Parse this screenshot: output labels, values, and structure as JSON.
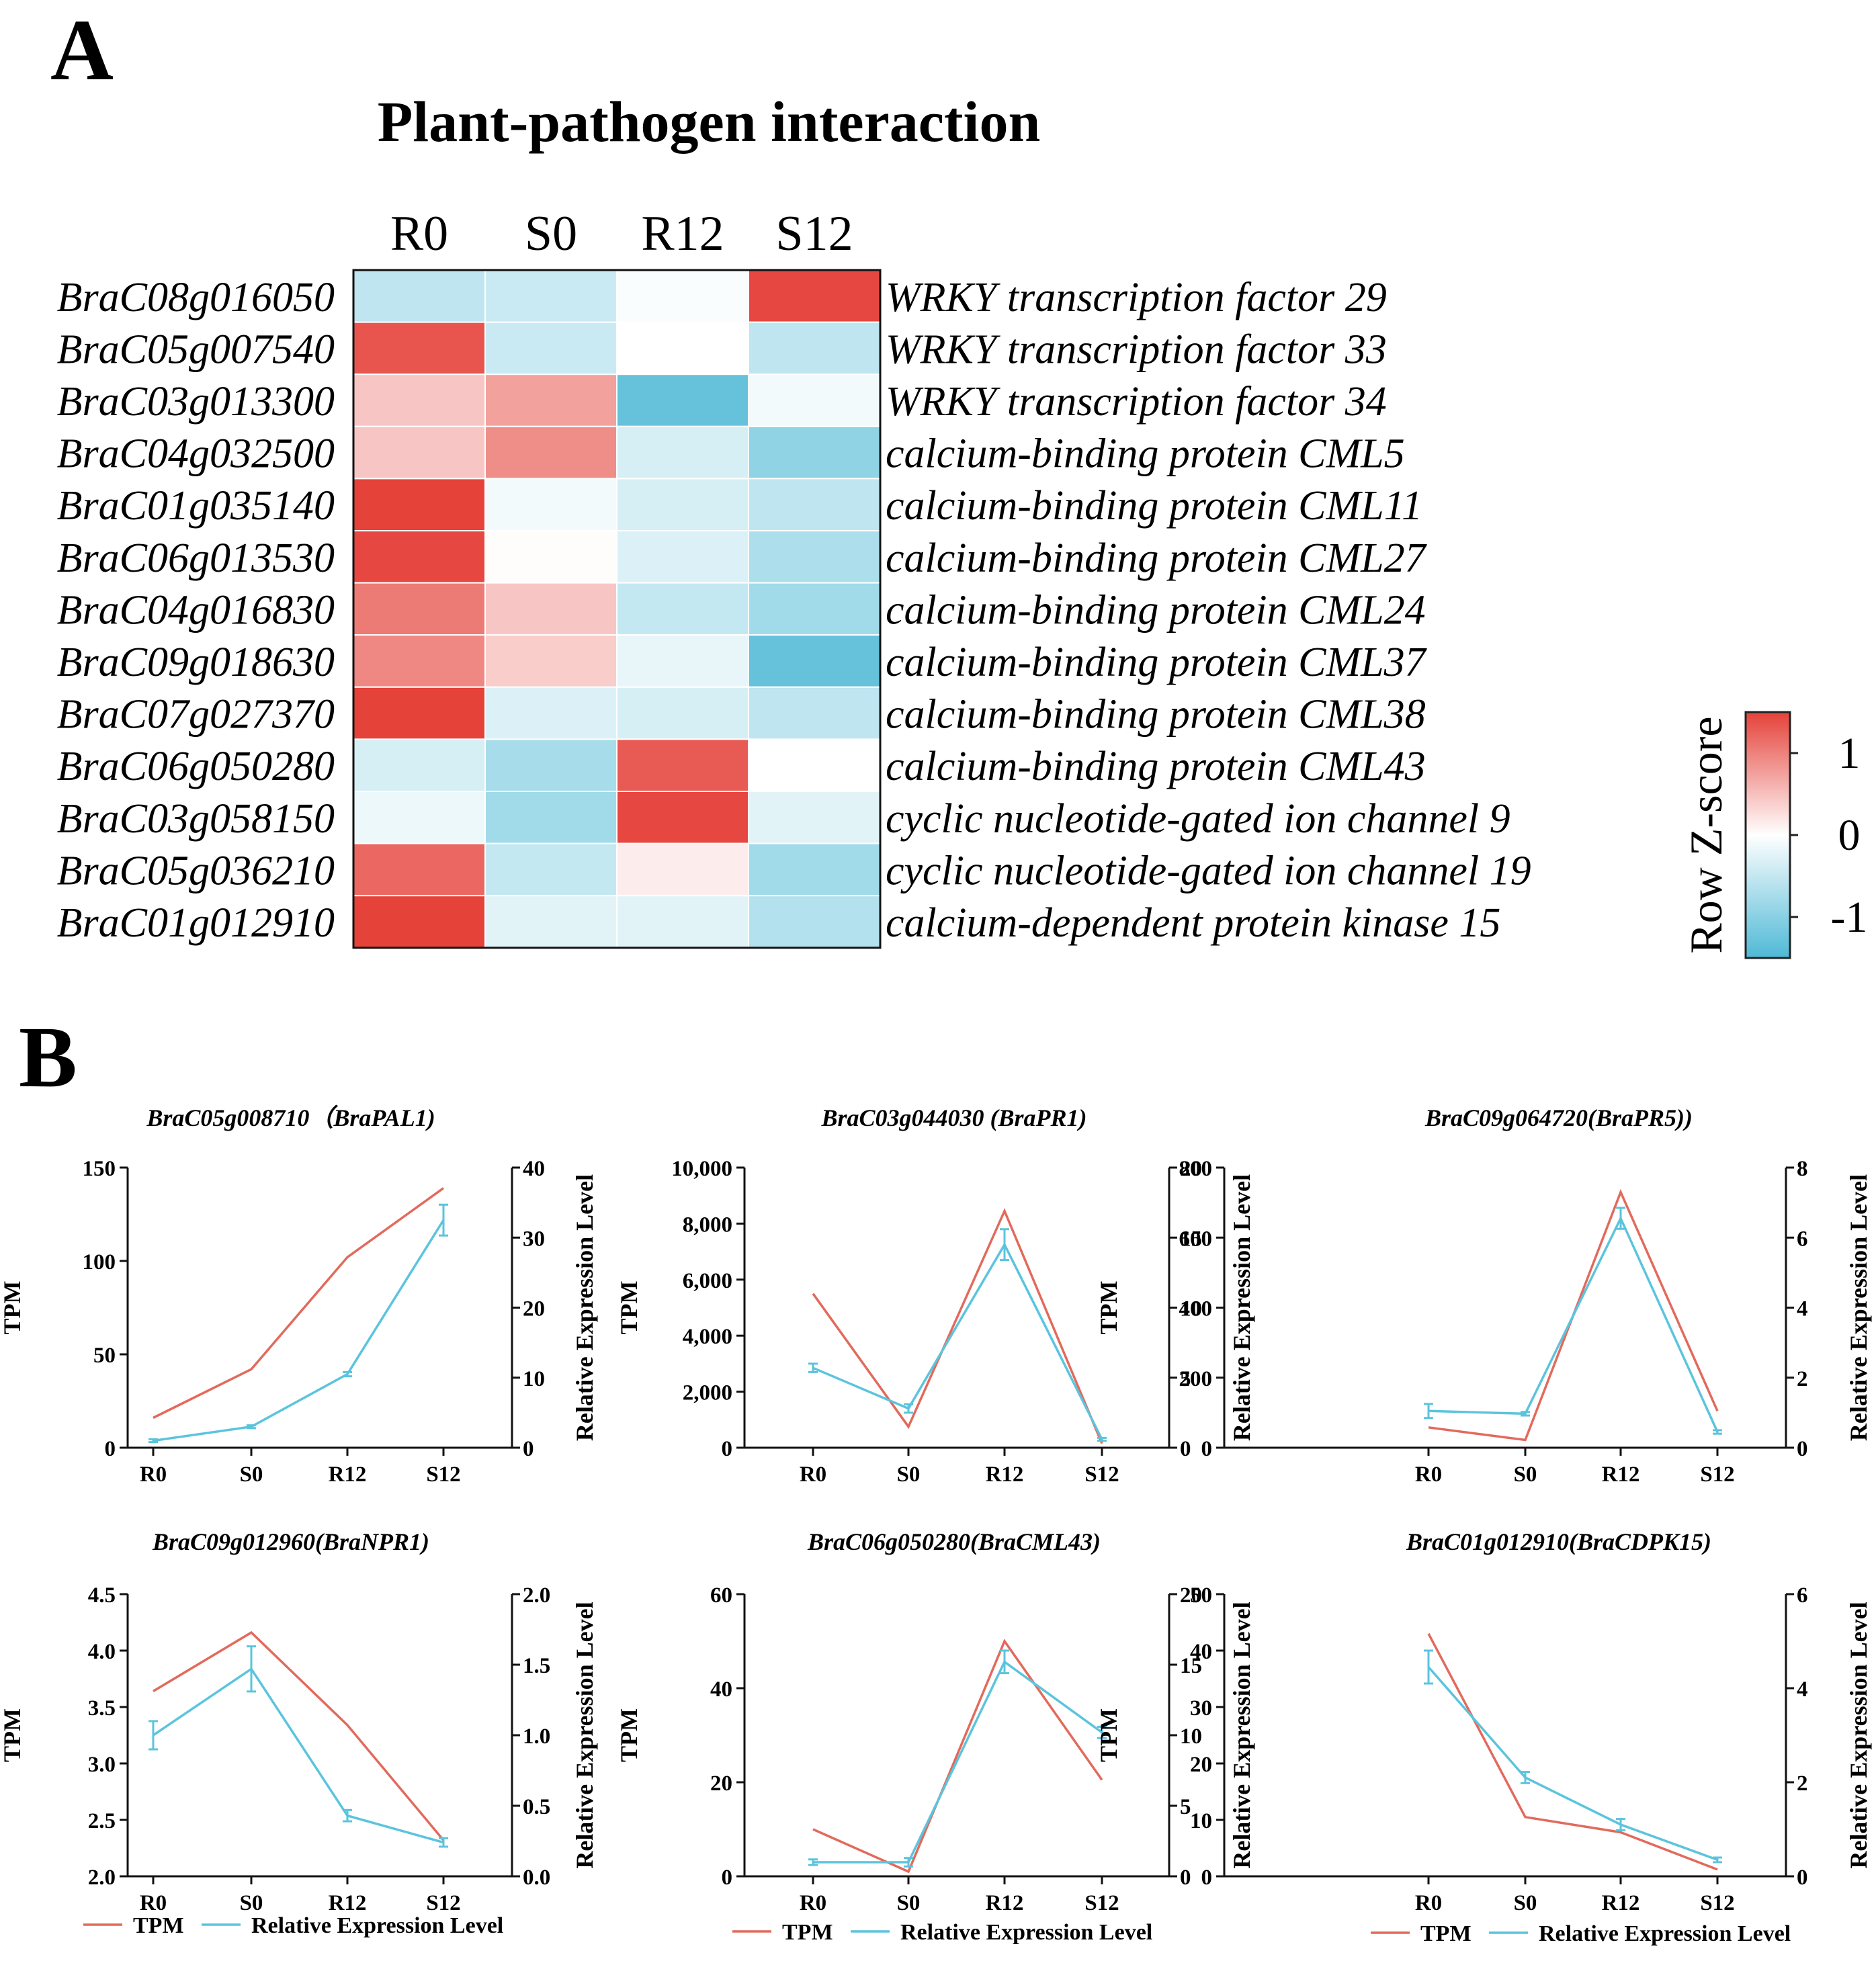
{
  "panel_a": {
    "label": "A",
    "title": "Plant-pathogen interaction",
    "columns": [
      "R0",
      "S0",
      "R12",
      "S12"
    ],
    "genes": [
      "BraC08g016050",
      "BraC05g007540",
      "BraC03g013300",
      "BraC04g032500",
      "BraC01g035140",
      "BraC06g013530",
      "BraC04g016830",
      "BraC09g018630",
      "BraC07g027370",
      "BraC06g050280",
      "BraC03g058150",
      "BraC05g036210",
      "BraC01g012910"
    ],
    "annotations": [
      "WRKY transcription factor 29",
      "WRKY transcription factor 33",
      "WRKY transcription factor 34",
      "calcium-binding protein CML5",
      "calcium-binding protein CML11",
      "calcium-binding protein CML27",
      "calcium-binding protein CML24",
      "calcium-binding protein CML37",
      "calcium-binding protein CML38",
      "calcium-binding protein CML43",
      "cyclic nucleotide-gated ion channel 9",
      "cyclic nucleotide-gated ion channel 19",
      "calcium-dependent protein kinase 15"
    ],
    "legend_title": "Row Z-score",
    "legend_ticks": [
      "1",
      "0",
      "-1"
    ],
    "colors": {
      "low": "#4fb9d6",
      "mid": "#ffffff",
      "high": "#e5423a"
    }
  },
  "panel_b": {
    "label": "B",
    "legend": {
      "tpm": "TPM",
      "rel": "Relative Expression Level"
    },
    "colors": {
      "tpm": "#e26a5c",
      "rel": "#5bc4dd"
    }
  },
  "chart_data": [
    {
      "type": "heatmap",
      "title": "Plant-pathogen interaction",
      "x": [
        "R0",
        "S0",
        "R12",
        "S12"
      ],
      "y": [
        "BraC08g016050",
        "BraC05g007540",
        "BraC03g013300",
        "BraC04g032500",
        "BraC01g035140",
        "BraC06g013530",
        "BraC04g016830",
        "BraC09g018630",
        "BraC07g027370",
        "BraC06g050280",
        "BraC03g058150",
        "BraC05g036210",
        "BraC01g012910"
      ],
      "values": [
        [
          -0.55,
          -0.45,
          -0.05,
          1.45
        ],
        [
          1.35,
          -0.45,
          0.0,
          -0.55
        ],
        [
          0.45,
          0.75,
          -1.3,
          -0.1
        ],
        [
          0.45,
          0.9,
          -0.35,
          -0.95
        ],
        [
          1.5,
          -0.1,
          -0.35,
          -0.55
        ],
        [
          1.45,
          0.02,
          -0.3,
          -0.7
        ],
        [
          1.05,
          0.45,
          -0.5,
          -0.8
        ],
        [
          0.95,
          0.4,
          -0.2,
          -1.3
        ],
        [
          1.5,
          -0.3,
          -0.35,
          -0.55
        ],
        [
          -0.35,
          -0.75,
          1.3,
          0.0
        ],
        [
          -0.15,
          -0.8,
          1.45,
          -0.25
        ],
        [
          1.2,
          -0.5,
          0.15,
          -0.8
        ],
        [
          1.5,
          -0.25,
          -0.25,
          -0.65
        ]
      ],
      "colorbar": {
        "title": "Row Z-score",
        "range": [
          -1.5,
          1.5
        ],
        "ticks": [
          1,
          0,
          -1
        ]
      }
    },
    {
      "type": "line",
      "title": "BraC05g008710（BraPAL1)",
      "categories": [
        "R0",
        "S0",
        "R12",
        "S12"
      ],
      "ylabel": "TPM",
      "y2label": "Relative Expression Level",
      "ylim": [
        0,
        150
      ],
      "yticks": [
        "0",
        "50",
        "100",
        "150"
      ],
      "y2lim": [
        0,
        40
      ],
      "y2ticks": [
        "0",
        "10",
        "20",
        "30",
        "40"
      ],
      "series": [
        {
          "name": "TPM",
          "axis": "left",
          "values": [
            16,
            42,
            102,
            139
          ]
        },
        {
          "name": "Relative Expression Level",
          "axis": "right",
          "values": [
            1.0,
            3.0,
            10.5,
            32.5
          ],
          "errors": [
            0.2,
            0.2,
            0.3,
            2.2
          ]
        }
      ]
    },
    {
      "type": "line",
      "title": "BraC03g044030 (BraPR1)",
      "categories": [
        "R0",
        "S0",
        "R12",
        "S12"
      ],
      "ylabel": "TPM",
      "y2label": "Relative Expression Level",
      "ylim": [
        0,
        10000
      ],
      "yticks": [
        "0",
        "2,000",
        "4,000",
        "6,000",
        "8,000",
        "10,000"
      ],
      "y2lim": [
        0,
        20
      ],
      "y2ticks": [
        "0",
        "5",
        "10",
        "15",
        "20"
      ],
      "series": [
        {
          "name": "TPM",
          "axis": "left",
          "values": [
            5500,
            750,
            8450,
            150
          ]
        },
        {
          "name": "Relative Expression Level",
          "axis": "right",
          "values": [
            5.7,
            2.8,
            14.5,
            0.6
          ],
          "errors": [
            0.3,
            0.3,
            1.1,
            0.1
          ]
        }
      ]
    },
    {
      "type": "line",
      "title": "BraC09g064720(BraPR5))",
      "categories": [
        "R0",
        "S0",
        "R12",
        "S12"
      ],
      "ylabel": "TPM",
      "y2label": "Relative Expression Level",
      "ylim": [
        0,
        800
      ],
      "yticks": [
        "0",
        "200",
        "400",
        "600",
        "800"
      ],
      "y2lim": [
        0,
        8
      ],
      "y2ticks": [
        "0",
        "2",
        "4",
        "6",
        "8"
      ],
      "series": [
        {
          "name": "TPM",
          "axis": "left",
          "values": [
            58,
            22,
            730,
            105
          ]
        },
        {
          "name": "Relative Expression Level",
          "axis": "right",
          "values": [
            1.05,
            0.97,
            6.55,
            0.45
          ],
          "errors": [
            0.2,
            0.05,
            0.3,
            0.05
          ]
        }
      ]
    },
    {
      "type": "line",
      "title": "BraC09g012960(BraNPR1)",
      "categories": [
        "R0",
        "S0",
        "R12",
        "S12"
      ],
      "ylabel": "TPM",
      "y2label": "Relative Expression Level",
      "ylim": [
        2.0,
        4.5
      ],
      "yticks": [
        "2.0",
        "2.5",
        "3.0",
        "3.5",
        "4.0",
        "4.5"
      ],
      "y2lim": [
        0,
        2.0
      ],
      "y2ticks": [
        "0.0",
        "0.5",
        "1.0",
        "1.5",
        "2.0"
      ],
      "series": [
        {
          "name": "TPM",
          "axis": "left",
          "values": [
            3.64,
            4.16,
            3.34,
            2.32
          ]
        },
        {
          "name": "Relative Expression Level",
          "axis": "right",
          "values": [
            1.0,
            1.47,
            0.43,
            0.24
          ],
          "errors": [
            0.1,
            0.16,
            0.04,
            0.03
          ]
        }
      ]
    },
    {
      "type": "line",
      "title": "BraC06g050280(BraCML43)",
      "categories": [
        "R0",
        "S0",
        "R12",
        "S12"
      ],
      "ylabel": "TPM",
      "y2label": "Relative Expression Level",
      "ylim": [
        0,
        60
      ],
      "yticks": [
        "0",
        "20",
        "40",
        "60"
      ],
      "y2lim": [
        0,
        20
      ],
      "y2ticks": [
        "0",
        "5",
        "10",
        "15",
        "20"
      ],
      "series": [
        {
          "name": "TPM",
          "axis": "left",
          "values": [
            10,
            1,
            50,
            20.5
          ]
        },
        {
          "name": "Relative Expression Level",
          "axis": "right",
          "values": [
            1.0,
            1.0,
            15.2,
            10.2
          ],
          "errors": [
            0.2,
            0.3,
            0.8,
            0.4
          ]
        }
      ]
    },
    {
      "type": "line",
      "title": "BraC01g012910(BraCDPK15)",
      "categories": [
        "R0",
        "S0",
        "R12",
        "S12"
      ],
      "ylabel": "TPM",
      "y2label": "Relative Expression Level",
      "ylim": [
        0,
        50
      ],
      "yticks": [
        "0",
        "10",
        "20",
        "30",
        "40",
        "50"
      ],
      "y2lim": [
        0,
        6
      ],
      "y2ticks": [
        "0",
        "2",
        "4",
        "6"
      ],
      "series": [
        {
          "name": "TPM",
          "axis": "left",
          "values": [
            43,
            10.5,
            7.8,
            1.2
          ]
        },
        {
          "name": "Relative Expression Level",
          "axis": "right",
          "values": [
            4.45,
            2.1,
            1.1,
            0.35
          ],
          "errors": [
            0.35,
            0.12,
            0.12,
            0.05
          ]
        }
      ]
    }
  ]
}
